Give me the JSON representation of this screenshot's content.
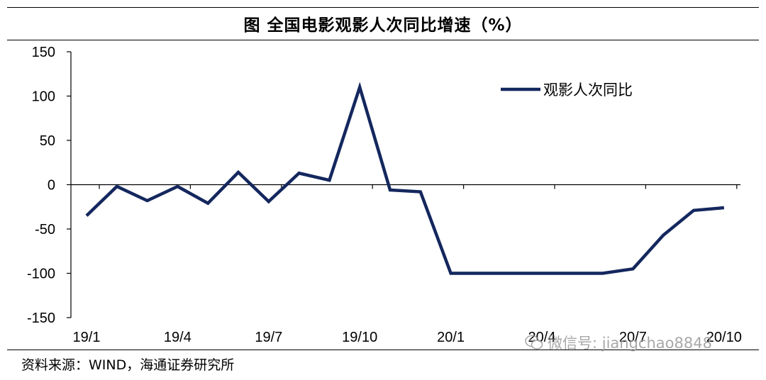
{
  "title": "图 全国电影观影人次同比增速（%）",
  "source": "资料来源：WIND，海通证券研究所",
  "watermark": "微信号: jiangchao8848",
  "colors": {
    "line": "#14275e",
    "axis": "#000000"
  },
  "chart_data": {
    "type": "line",
    "title": "图 全国电影观影人次同比增速（%）",
    "xlabel": "",
    "ylabel": "",
    "ylim": [
      -150,
      150
    ],
    "yticks": [
      150,
      100,
      50,
      0,
      -50,
      -100,
      -150
    ],
    "xtick_labels": [
      "19/1",
      "19/4",
      "19/7",
      "19/10",
      "20/1",
      "20/4",
      "20/7",
      "20/10"
    ],
    "x": [
      "19/1",
      "19/2",
      "19/3",
      "19/4",
      "19/5",
      "19/6",
      "19/7",
      "19/8",
      "19/9",
      "19/10",
      "19/11",
      "19/12",
      "20/1",
      "20/2",
      "20/3",
      "20/4",
      "20/5",
      "20/6",
      "20/7",
      "20/8",
      "20/9",
      "20/10"
    ],
    "legend": {
      "position": "top-right"
    },
    "grid": false,
    "series": [
      {
        "name": "观影人次同比",
        "values": [
          -35,
          -2,
          -18,
          -2,
          -21,
          14,
          -19,
          13,
          5,
          110,
          -6,
          -8,
          -100,
          -100,
          -100,
          -100,
          -100,
          -100,
          -95,
          -57,
          -29,
          -26
        ]
      }
    ]
  }
}
